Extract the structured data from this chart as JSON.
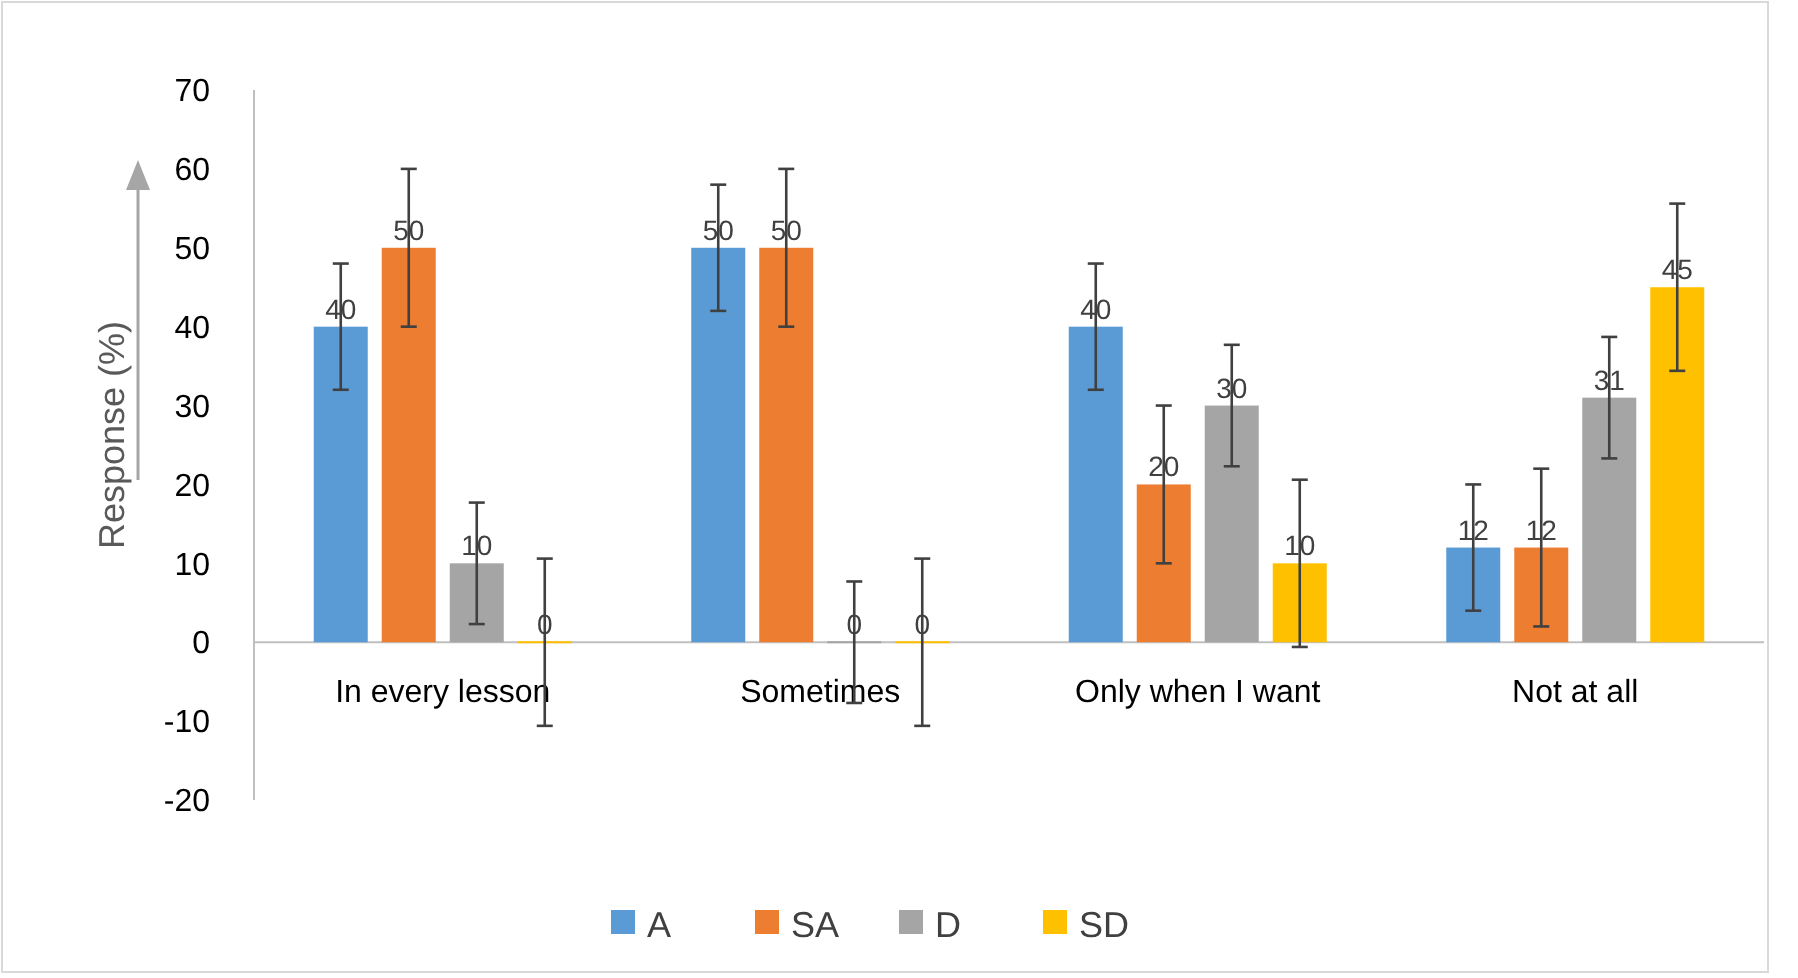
{
  "chart_data": {
    "type": "bar",
    "ylabel": "Response (%)",
    "categories": [
      "In every lesson",
      "Sometimes",
      "Only when I want",
      "Not at all"
    ],
    "series": [
      {
        "name": "A",
        "color": "#5b9bd5",
        "values": [
          40,
          50,
          40,
          12
        ],
        "errors": [
          8,
          8,
          8,
          8
        ]
      },
      {
        "name": "SA",
        "color": "#ed7d31",
        "values": [
          50,
          50,
          20,
          12
        ],
        "errors": [
          10,
          10,
          10,
          10
        ]
      },
      {
        "name": "D",
        "color": "#a5a5a5",
        "values": [
          10,
          0,
          30,
          31
        ],
        "errors": [
          7.7,
          7.7,
          7.7,
          7.7
        ]
      },
      {
        "name": "SD",
        "color": "#ffc000",
        "values": [
          0,
          0,
          10,
          45
        ],
        "errors": [
          10.6,
          10.6,
          10.6,
          10.6
        ]
      }
    ],
    "ylim": [
      -20,
      70
    ],
    "yticks": [
      -20,
      -10,
      0,
      10,
      20,
      30,
      40,
      50,
      60,
      70
    ],
    "data_labels": true,
    "legend": "bottom",
    "grid": false
  }
}
